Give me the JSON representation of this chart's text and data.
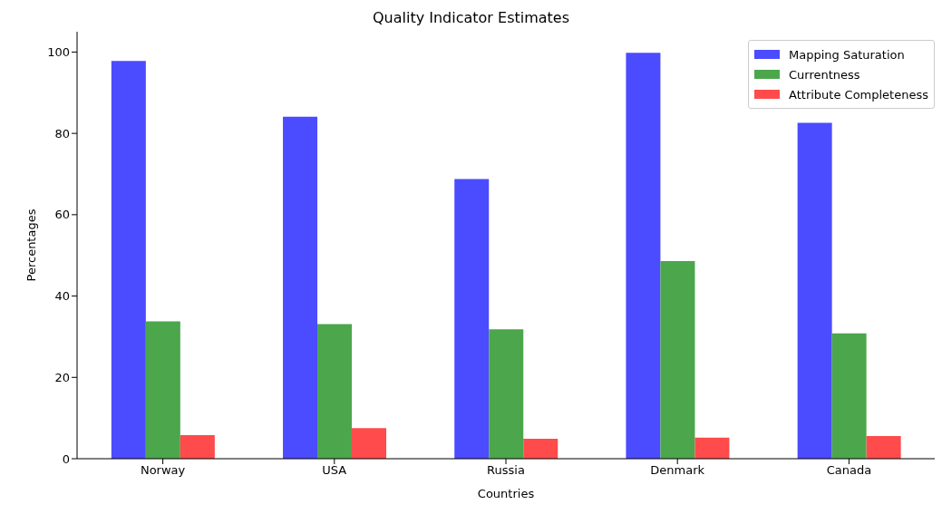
{
  "chart_data": {
    "type": "bar",
    "title": "Quality Indicator Estimates",
    "xlabel": "Countries",
    "ylabel": "Percentages",
    "categories": [
      "Norway",
      "USA",
      "Russia",
      "Denmark",
      "Canada"
    ],
    "series": [
      {
        "name": "Mapping Saturation",
        "color": "#4b4bff",
        "values": [
          97.8,
          84.1,
          68.8,
          99.8,
          82.6
        ]
      },
      {
        "name": "Currentness",
        "color": "#4ca64c",
        "values": [
          33.8,
          33.1,
          31.8,
          48.6,
          30.8
        ]
      },
      {
        "name": "Attribute Completeness",
        "color": "#ff4b4b",
        "values": [
          5.8,
          7.5,
          4.9,
          5.2,
          5.6
        ]
      }
    ],
    "ylim": [
      0,
      105
    ],
    "yticks": [
      0,
      20,
      40,
      60,
      80,
      100
    ],
    "grid": false,
    "legend": "top right"
  }
}
